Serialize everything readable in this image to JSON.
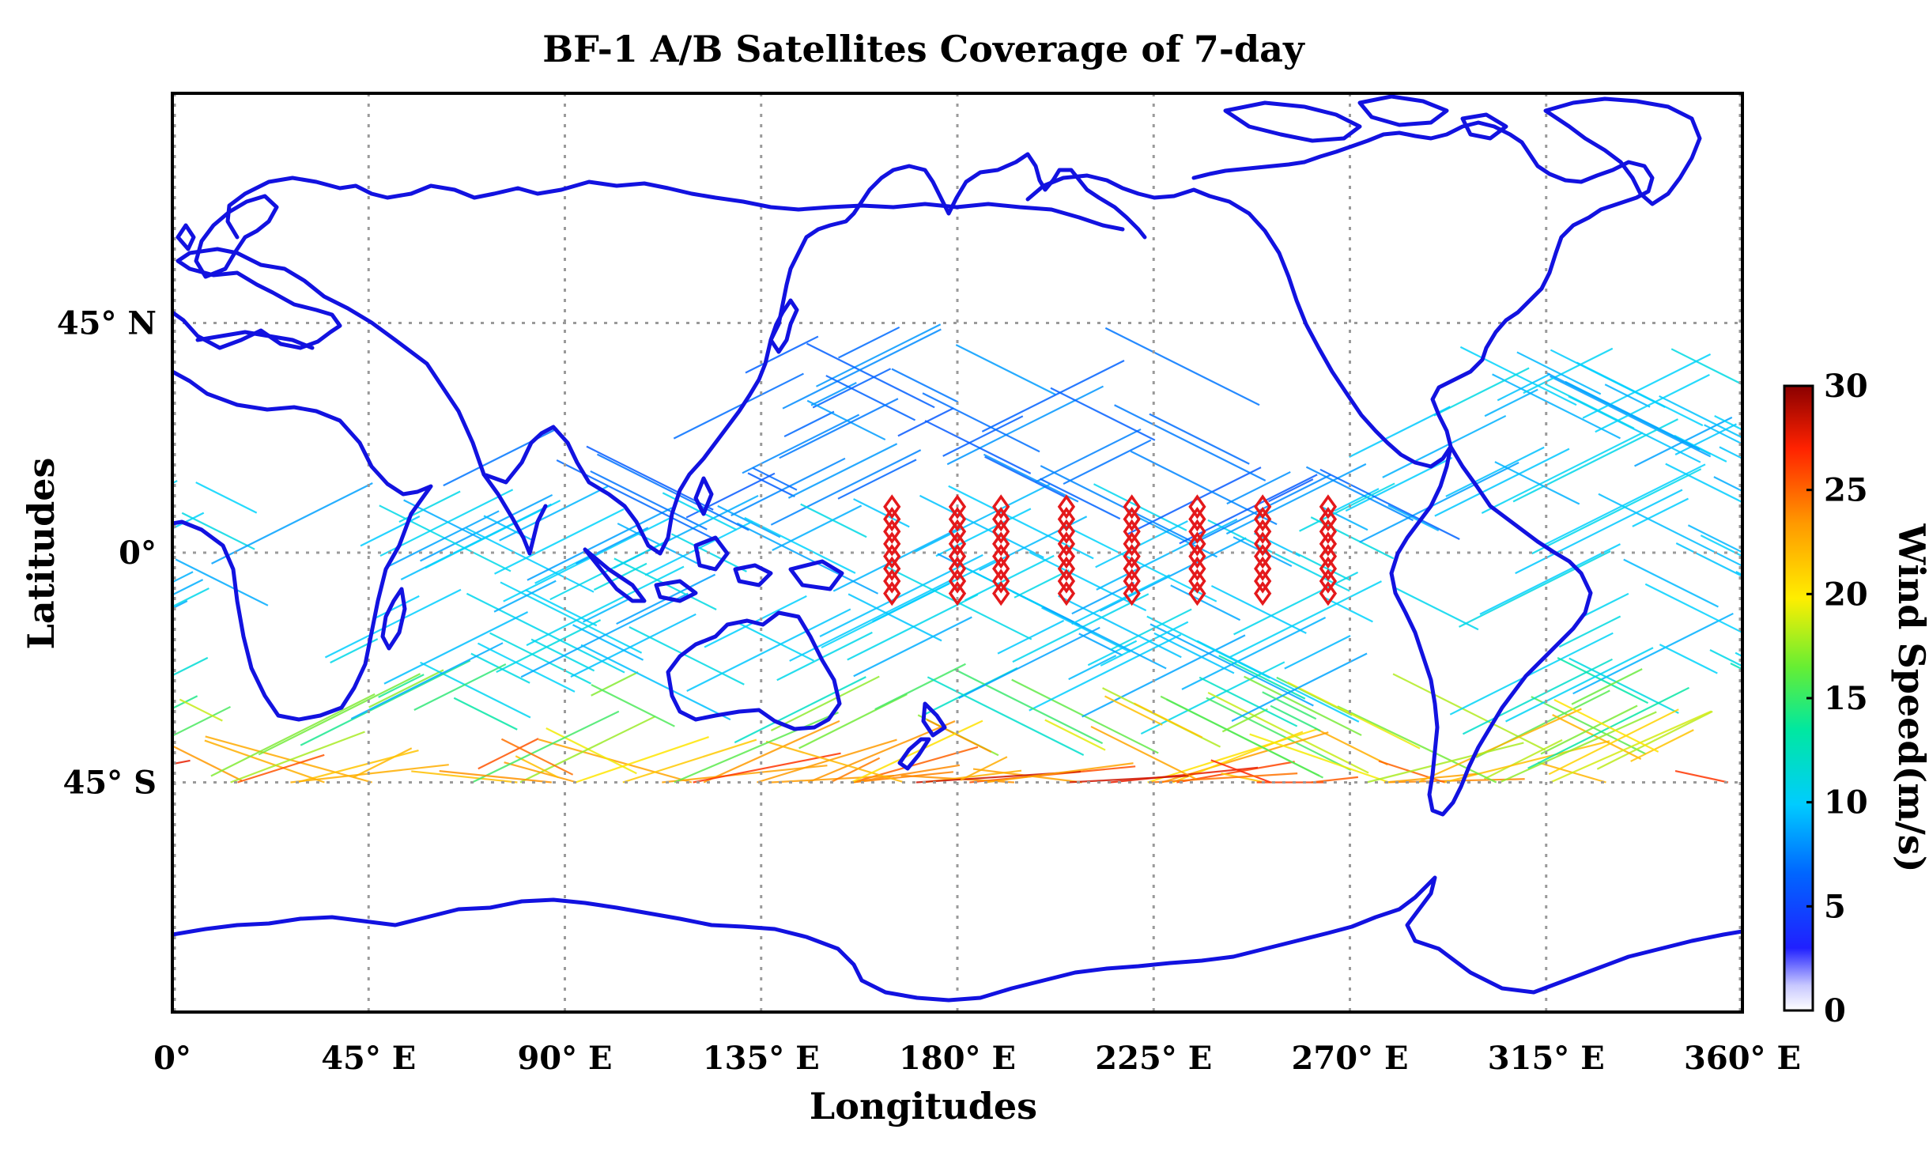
{
  "title": "BF-1 A/B Satellites Coverage of 7-day",
  "xlabel": "Longitudes",
  "ylabel": "Latitudes",
  "xticks": [
    {
      "lon": 0,
      "label": "0°"
    },
    {
      "lon": 45,
      "label": "45° E"
    },
    {
      "lon": 90,
      "label": "90° E"
    },
    {
      "lon": 135,
      "label": "135° E"
    },
    {
      "lon": 180,
      "label": "180° E"
    },
    {
      "lon": 225,
      "label": "225° E"
    },
    {
      "lon": 270,
      "label": "270° E"
    },
    {
      "lon": 315,
      "label": "315° E"
    },
    {
      "lon": 360,
      "label": "360° E"
    }
  ],
  "yticks": [
    {
      "lat": 45,
      "label": "45° N"
    },
    {
      "lat": 0,
      "label": "0°"
    },
    {
      "lat": -45,
      "label": "45° S"
    }
  ],
  "colorbar": {
    "label": "Wind Speed(m/s)",
    "min": 0,
    "max": 30,
    "ticks": [
      0,
      5,
      10,
      15,
      20,
      25,
      30
    ],
    "colormap": "jet"
  },
  "map": {
    "lon_range": [
      0,
      360
    ],
    "lat_range": [
      -90,
      90
    ],
    "coverage_lat_band": [
      -45,
      45
    ],
    "grid": true,
    "coastline_color": "#1212e0"
  },
  "buoy_columns": {
    "marker": "diamond",
    "color": "#e4191b",
    "longitudes": [
      165,
      180,
      190,
      205,
      220,
      235,
      250,
      265
    ],
    "lat_range": [
      -8,
      9
    ]
  }
}
